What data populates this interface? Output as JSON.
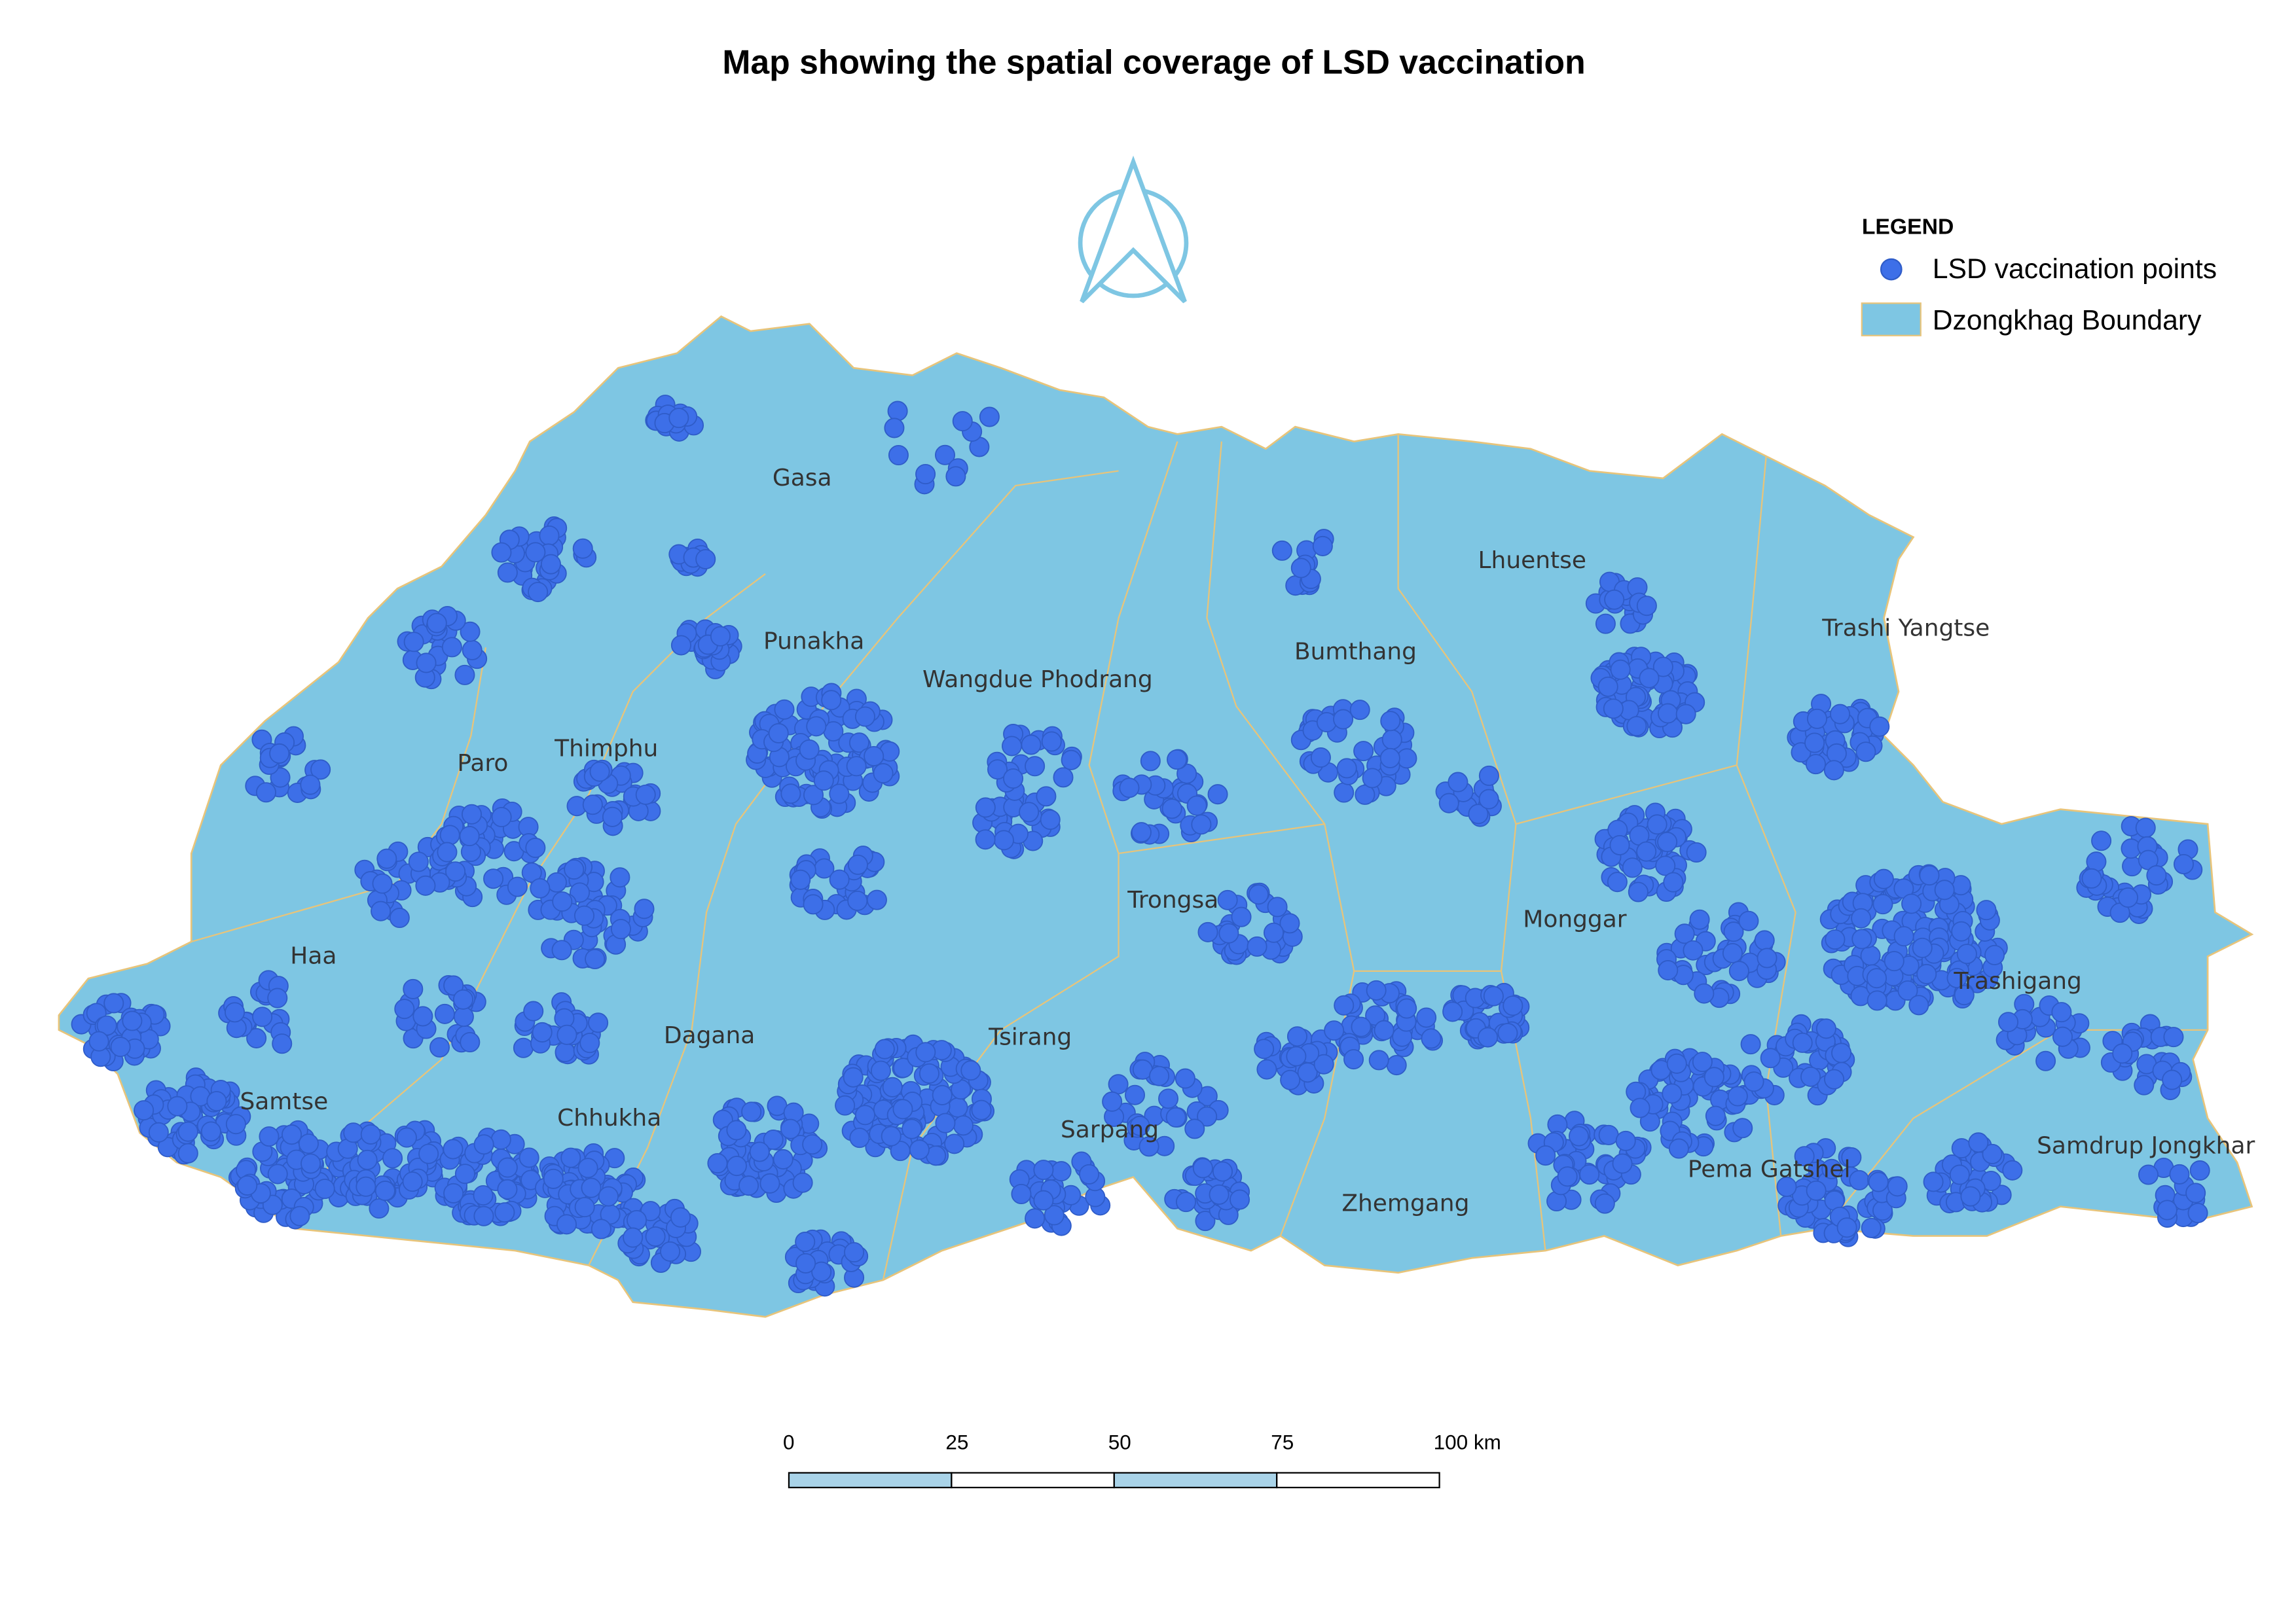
{
  "title": "Map showing the spatial coverage of LSD vaccination",
  "legend": {
    "title": "LEGEND",
    "items": [
      "LSD vaccination points",
      "Dzongkhag Boundary"
    ]
  },
  "districts": [
    "Gasa",
    "Punakha",
    "Wangdue Phodrang",
    "Lhuentse",
    "Bumthang",
    "Trashi Yangtse",
    "Paro",
    "Thimphu",
    "Haa",
    "Trongsa",
    "Monggar",
    "Trashigang",
    "Dagana",
    "Tsirang",
    "Samtse",
    "Chhukha",
    "Sarpang",
    "Samdrup Jongkhar",
    "Pema Gatshel",
    "Zhemgang"
  ],
  "scale_bar": {
    "ticks": [
      0,
      25,
      50,
      75,
      {
        "value": 100,
        "label": "100 km"
      }
    ]
  }
}
